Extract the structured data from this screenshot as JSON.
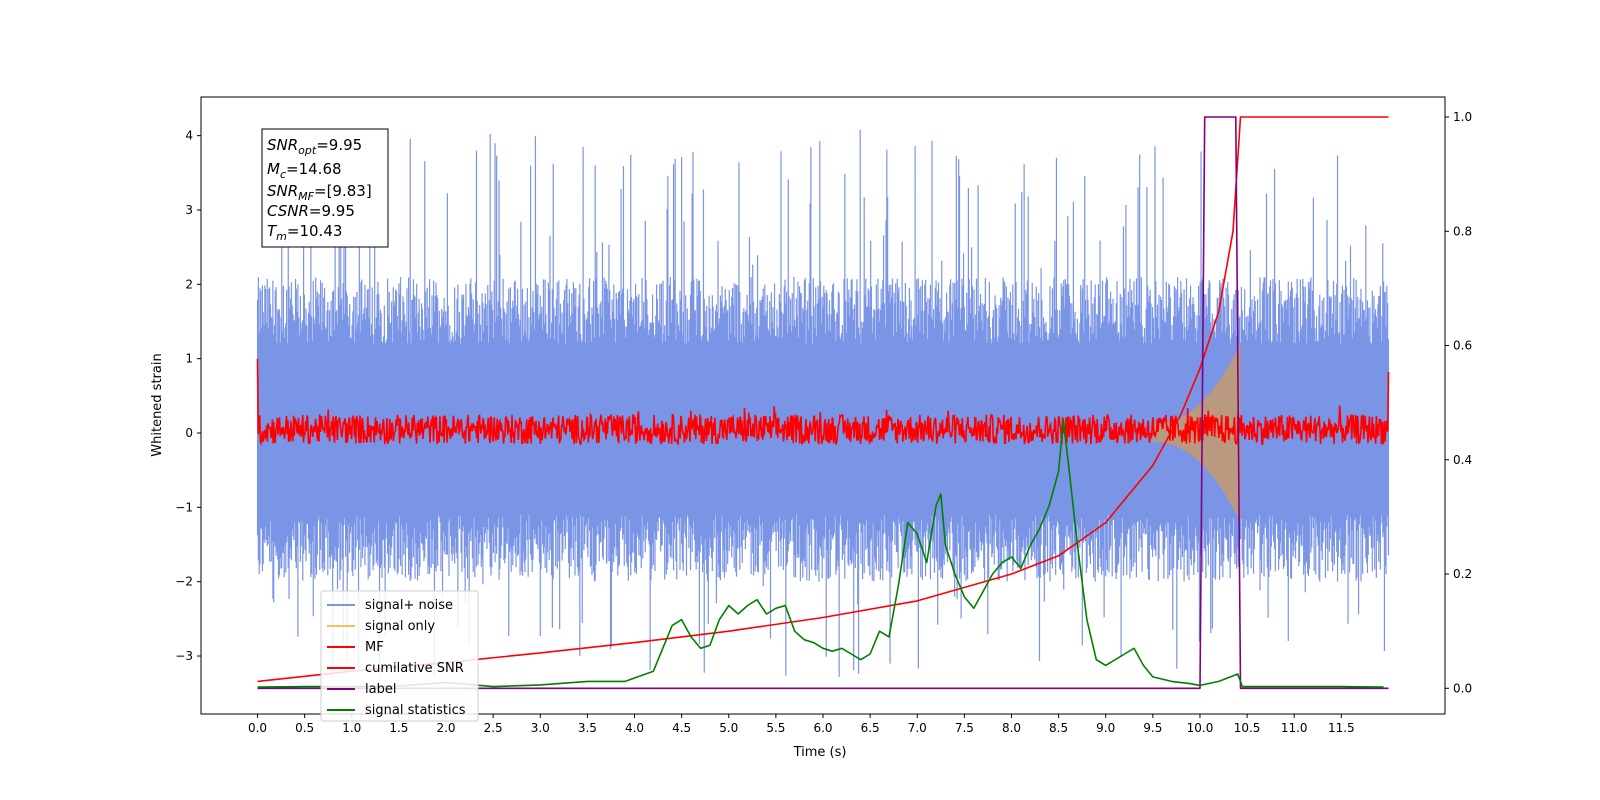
{
  "chart_data": {
    "type": "line",
    "xlabel": "Time (s)",
    "ylabel_left": "Whitened strain",
    "ylabel_right": "",
    "xlim": [
      -0.6,
      12.6
    ],
    "ylim_left": [
      -3.78,
      4.52
    ],
    "ylim_right": [
      -0.045,
      1.035
    ],
    "x_ticks": [
      "0.0",
      "0.5",
      "1.0",
      "1.5",
      "2.0",
      "2.5",
      "3.0",
      "3.5",
      "4.0",
      "4.5",
      "5.0",
      "5.5",
      "6.0",
      "6.5",
      "7.0",
      "7.5",
      "8.0",
      "8.5",
      "9.0",
      "9.5",
      "10.0",
      "10.5",
      "11.0",
      "11.5"
    ],
    "y_ticks_left": [
      "4",
      "3",
      "2",
      "1",
      "0",
      "−1",
      "−2",
      "−3"
    ],
    "y_ticks_right": [
      "1.0",
      "0.8",
      "0.6",
      "0.4",
      "0.2",
      "0.0"
    ],
    "grid": false,
    "legend_position": "lower-left",
    "annotation": {
      "lines": [
        {
          "base": "SNR",
          "sub": "opt",
          "value": "=9.95"
        },
        {
          "base": "M",
          "sub": "c",
          "value": "=14.68"
        },
        {
          "base": "SNR",
          "sub": "MF",
          "value": "=[9.83]"
        },
        {
          "base": "CSNR",
          "sub": "",
          "value": "=9.95"
        },
        {
          "base": "T",
          "sub": "m",
          "value": "=10.43"
        }
      ]
    },
    "series": [
      {
        "name": "signal+ noise",
        "color": "#7a94e6",
        "axis": "left",
        "x_range": [
          0,
          12
        ],
        "band": [
          -1.1,
          1.2
        ],
        "spike_max": 4.1,
        "spike_min": -3.3
      },
      {
        "name": "signal only",
        "color": "#f5c15c",
        "axis": "left",
        "x_range": [
          9.5,
          10.43
        ],
        "envelope_end": 1.2
      },
      {
        "name": "MF",
        "color": "#ff0000",
        "axis": "left",
        "x_range": [
          0,
          12
        ],
        "band": [
          -0.15,
          0.25
        ],
        "start_value": 1.0,
        "end_value": 0.82
      },
      {
        "name": "cumilative SNR",
        "color": "#ff0000",
        "axis": "right",
        "x": [
          0,
          1,
          2,
          3,
          4,
          5,
          6,
          7,
          8,
          8.5,
          9,
          9.5,
          9.8,
          10.0,
          10.2,
          10.35,
          10.43,
          10.45,
          12
        ],
        "y": [
          0.012,
          0.03,
          0.045,
          0.062,
          0.08,
          0.1,
          0.124,
          0.153,
          0.2,
          0.232,
          0.29,
          0.39,
          0.48,
          0.56,
          0.66,
          0.8,
          1.0,
          1.0,
          1.0
        ]
      },
      {
        "name": "label",
        "color": "#800080",
        "axis": "right",
        "x": [
          0,
          10.0,
          10.05,
          10.38,
          10.43,
          12
        ],
        "y": [
          0,
          0,
          1,
          1,
          0,
          0
        ]
      },
      {
        "name": "signal statistics",
        "color": "#008000",
        "axis": "right",
        "x": [
          0,
          0.5,
          1,
          1.5,
          2,
          2.5,
          3,
          3.5,
          3.9,
          4.2,
          4.4,
          4.5,
          4.6,
          4.7,
          4.8,
          4.9,
          5.0,
          5.1,
          5.2,
          5.3,
          5.4,
          5.5,
          5.6,
          5.7,
          5.8,
          5.9,
          6.0,
          6.1,
          6.2,
          6.3,
          6.4,
          6.5,
          6.6,
          6.7,
          6.8,
          6.9,
          7.0,
          7.1,
          7.2,
          7.25,
          7.3,
          7.4,
          7.5,
          7.6,
          7.7,
          7.8,
          7.9,
          8.0,
          8.1,
          8.2,
          8.3,
          8.4,
          8.5,
          8.55,
          8.6,
          8.7,
          8.8,
          8.9,
          9.0,
          9.2,
          9.3,
          9.4,
          9.5,
          9.7,
          9.9,
          10.0,
          10.2,
          10.4,
          10.45,
          10.5,
          10.6,
          11.0,
          11.5,
          11.95
        ],
        "y": [
          0.002,
          0.003,
          0.003,
          0.004,
          0.01,
          0.003,
          0.006,
          0.012,
          0.012,
          0.03,
          0.11,
          0.12,
          0.09,
          0.07,
          0.075,
          0.12,
          0.145,
          0.13,
          0.145,
          0.155,
          0.13,
          0.14,
          0.145,
          0.1,
          0.085,
          0.08,
          0.07,
          0.065,
          0.07,
          0.06,
          0.05,
          0.06,
          0.1,
          0.09,
          0.18,
          0.29,
          0.27,
          0.22,
          0.32,
          0.34,
          0.25,
          0.2,
          0.16,
          0.14,
          0.17,
          0.2,
          0.22,
          0.23,
          0.21,
          0.25,
          0.28,
          0.32,
          0.38,
          0.47,
          0.4,
          0.25,
          0.12,
          0.05,
          0.04,
          0.06,
          0.07,
          0.04,
          0.02,
          0.012,
          0.008,
          0.005,
          0.012,
          0.025,
          0.003,
          0.003,
          0.003,
          0.003,
          0.003,
          0.002
        ]
      }
    ]
  }
}
